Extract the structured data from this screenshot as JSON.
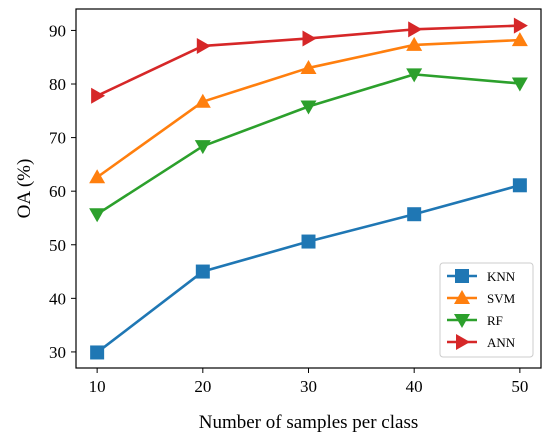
{
  "chart_data": {
    "type": "line",
    "title": "",
    "xlabel": "Number of samples per class",
    "ylabel": "OA (%)",
    "x": [
      10,
      20,
      30,
      40,
      50
    ],
    "xlim": [
      8,
      52
    ],
    "ylim": [
      27,
      94
    ],
    "xticks": [
      10,
      20,
      30,
      40,
      50
    ],
    "yticks": [
      30,
      40,
      50,
      60,
      70,
      80,
      90
    ],
    "grid": false,
    "legend_position": "bottom-right",
    "series": [
      {
        "name": "KNN",
        "marker": "square",
        "color": "#1f77b4",
        "values": [
          29.9,
          45.0,
          50.6,
          55.7,
          61.1
        ]
      },
      {
        "name": "SVM",
        "marker": "triangle-up",
        "color": "#ff7f0e",
        "values": [
          62.6,
          76.7,
          83.0,
          87.3,
          88.2
        ]
      },
      {
        "name": "RF",
        "marker": "triangle-down",
        "color": "#2ca02c",
        "values": [
          55.7,
          68.4,
          75.8,
          81.8,
          80.1
        ]
      },
      {
        "name": "ANN",
        "marker": "triangle-right",
        "color": "#d62728",
        "values": [
          77.8,
          87.1,
          88.5,
          90.2,
          90.9
        ]
      }
    ]
  }
}
